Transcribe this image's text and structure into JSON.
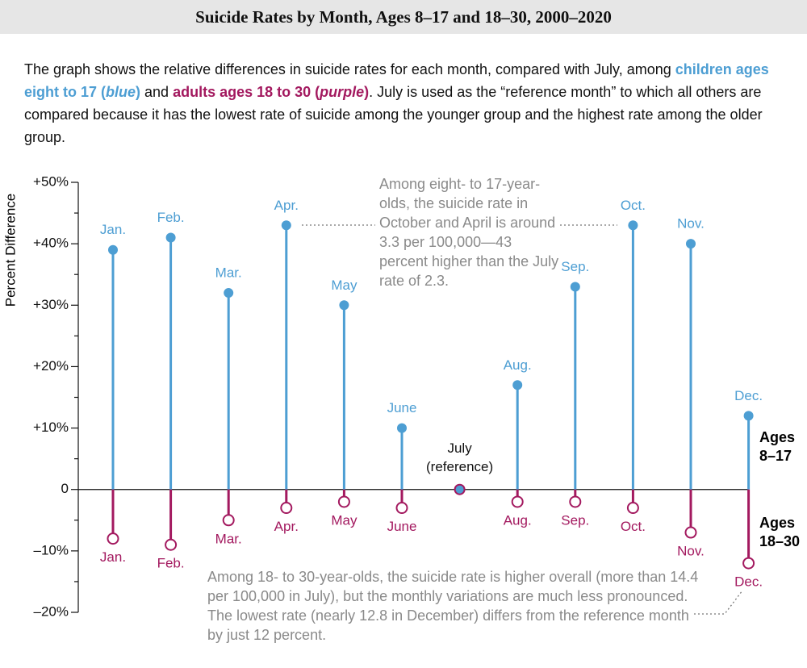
{
  "chart_data": {
    "type": "lollipop",
    "title": "Suicide Rates by Month, Ages 8–17 and 18–30, 2000–2020",
    "description": [
      "The graph shows the relative differences in suicide rates for each month, compared with July, among ",
      "children ages eight to 17 (",
      "blue",
      ")",
      " and ",
      "adults ages 18 to 30 (",
      "purple",
      ")",
      ". July is used as the “reference month” to which all others are compared because it has the lowest rate of suicide among the younger group and the highest rate among the older group."
    ],
    "y_label": "Percent Difference",
    "categories": [
      "Jan.",
      "Feb.",
      "Mar.",
      "Apr.",
      "May",
      "June",
      "July",
      "Aug.",
      "Sep.",
      "Oct.",
      "Nov.",
      "Dec."
    ],
    "reference_index": 6,
    "reference_label": "(reference)",
    "series": [
      {
        "name": "Ages 8–17",
        "color": "#4d9ed3",
        "values": [
          39,
          41,
          32,
          43,
          30,
          10,
          0,
          17,
          33,
          43,
          40,
          12
        ]
      },
      {
        "name": "Ages 18–30",
        "color": "#a3195f",
        "values": [
          -8,
          -9,
          -5,
          -3,
          -2,
          -3,
          0,
          -2,
          -2,
          -3,
          -7,
          -12
        ]
      }
    ],
    "ylim": [
      -20,
      50
    ],
    "yticks": [
      {
        "value": -20,
        "label": "–20%"
      },
      {
        "value": -10,
        "label": "–10%"
      },
      0,
      {
        "value": 10,
        "label": "+10%"
      },
      {
        "value": 20,
        "label": "+20%"
      },
      {
        "value": 30,
        "label": "+30%"
      },
      {
        "value": 40,
        "label": "+40%"
      },
      {
        "value": 50,
        "label": "+50%"
      }
    ],
    "yminorticks": [
      -15,
      -5,
      5,
      15,
      25,
      35,
      45
    ],
    "annotations": [
      "Among eight- to 17-year-olds, the suicide rate in October and April is around 3.3 per 100,000—43 percent higher than the July rate of 2.3.",
      "Among 18- to 30-year-olds, the suicide rate is higher overall (more than 14.4 per 100,000 in July), but the monthly variations are much less pronounced. The lowest rate (nearly 12.8 in December) differs from the reference month by just 12 percent."
    ]
  }
}
